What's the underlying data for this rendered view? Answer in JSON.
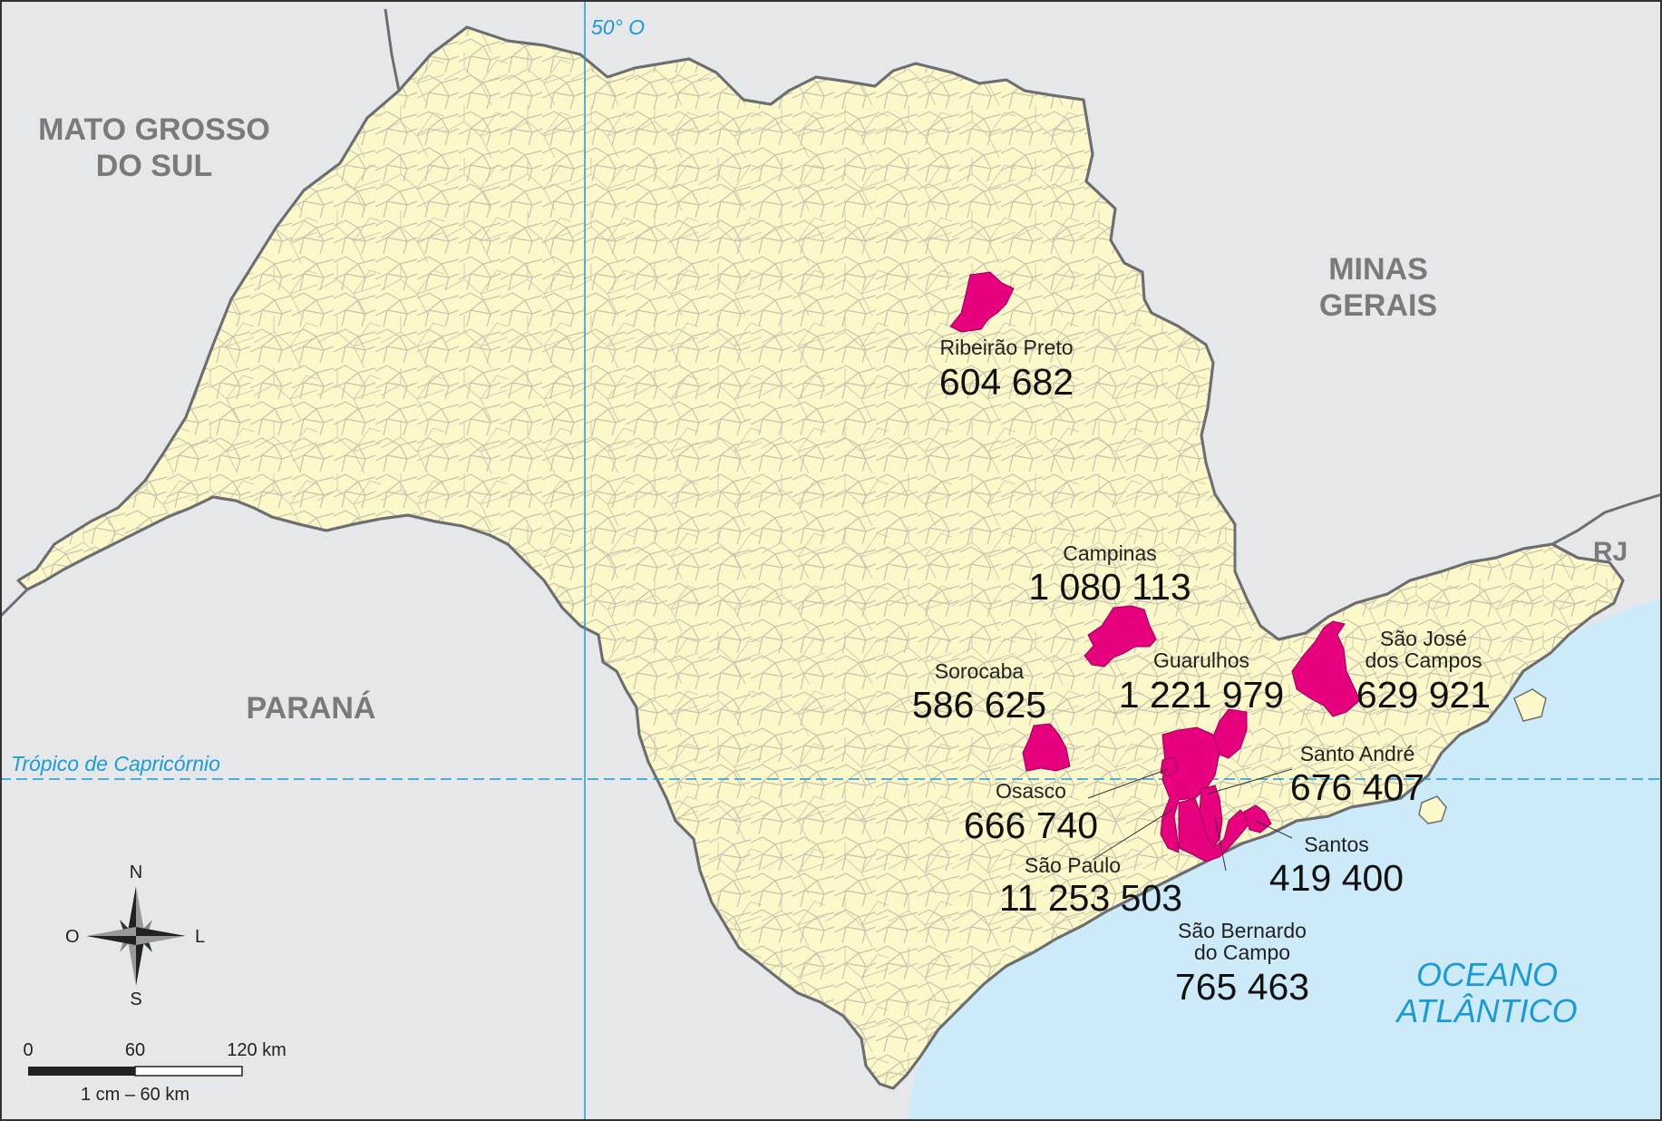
{
  "neighbors": {
    "mato_grosso_do_sul": [
      "MATO GROSSO",
      "DO SUL"
    ],
    "minas_gerais": [
      "MINAS",
      "GERAIS"
    ],
    "parana": "PARANÁ",
    "rj": "RJ"
  },
  "ocean": [
    "OCEANO",
    "ATLÂNTICO"
  ],
  "meridian_label": "50° O",
  "tropic_label": "Trópico de Capricórnio",
  "cities": [
    {
      "name": [
        "Ribeirão Preto"
      ],
      "population": "604 682"
    },
    {
      "name": [
        "Campinas"
      ],
      "population": "1 080 113"
    },
    {
      "name": [
        "Sorocaba"
      ],
      "population": "586 625"
    },
    {
      "name": [
        "Guarulhos"
      ],
      "population": "1 221 979"
    },
    {
      "name": [
        "São José",
        "dos Campos"
      ],
      "population": "629 921"
    },
    {
      "name": [
        "Santo André"
      ],
      "population": "676 407"
    },
    {
      "name": [
        "Osasco"
      ],
      "population": "666 740"
    },
    {
      "name": [
        "Santos"
      ],
      "population": "419 400"
    },
    {
      "name": [
        "São Paulo"
      ],
      "population": "11 253 503"
    },
    {
      "name": [
        "São Bernardo",
        "do Campo"
      ],
      "population": "765 463"
    }
  ],
  "compass": {
    "n": "N",
    "s": "S",
    "e": "L",
    "w": "O"
  },
  "scale_bar": {
    "ticks": [
      "0",
      "60",
      "120 km"
    ],
    "caption": "1 cm – 60 km"
  },
  "colors": {
    "land": "#fdf8c9",
    "neighbor_land": "#e6e7e9",
    "ocean": "#cdeaf8",
    "border": "#6d6e71",
    "municipal_lines": "#b9b5a4",
    "highlight": "#e6007e",
    "reference_lines": "#1a9bd7"
  }
}
